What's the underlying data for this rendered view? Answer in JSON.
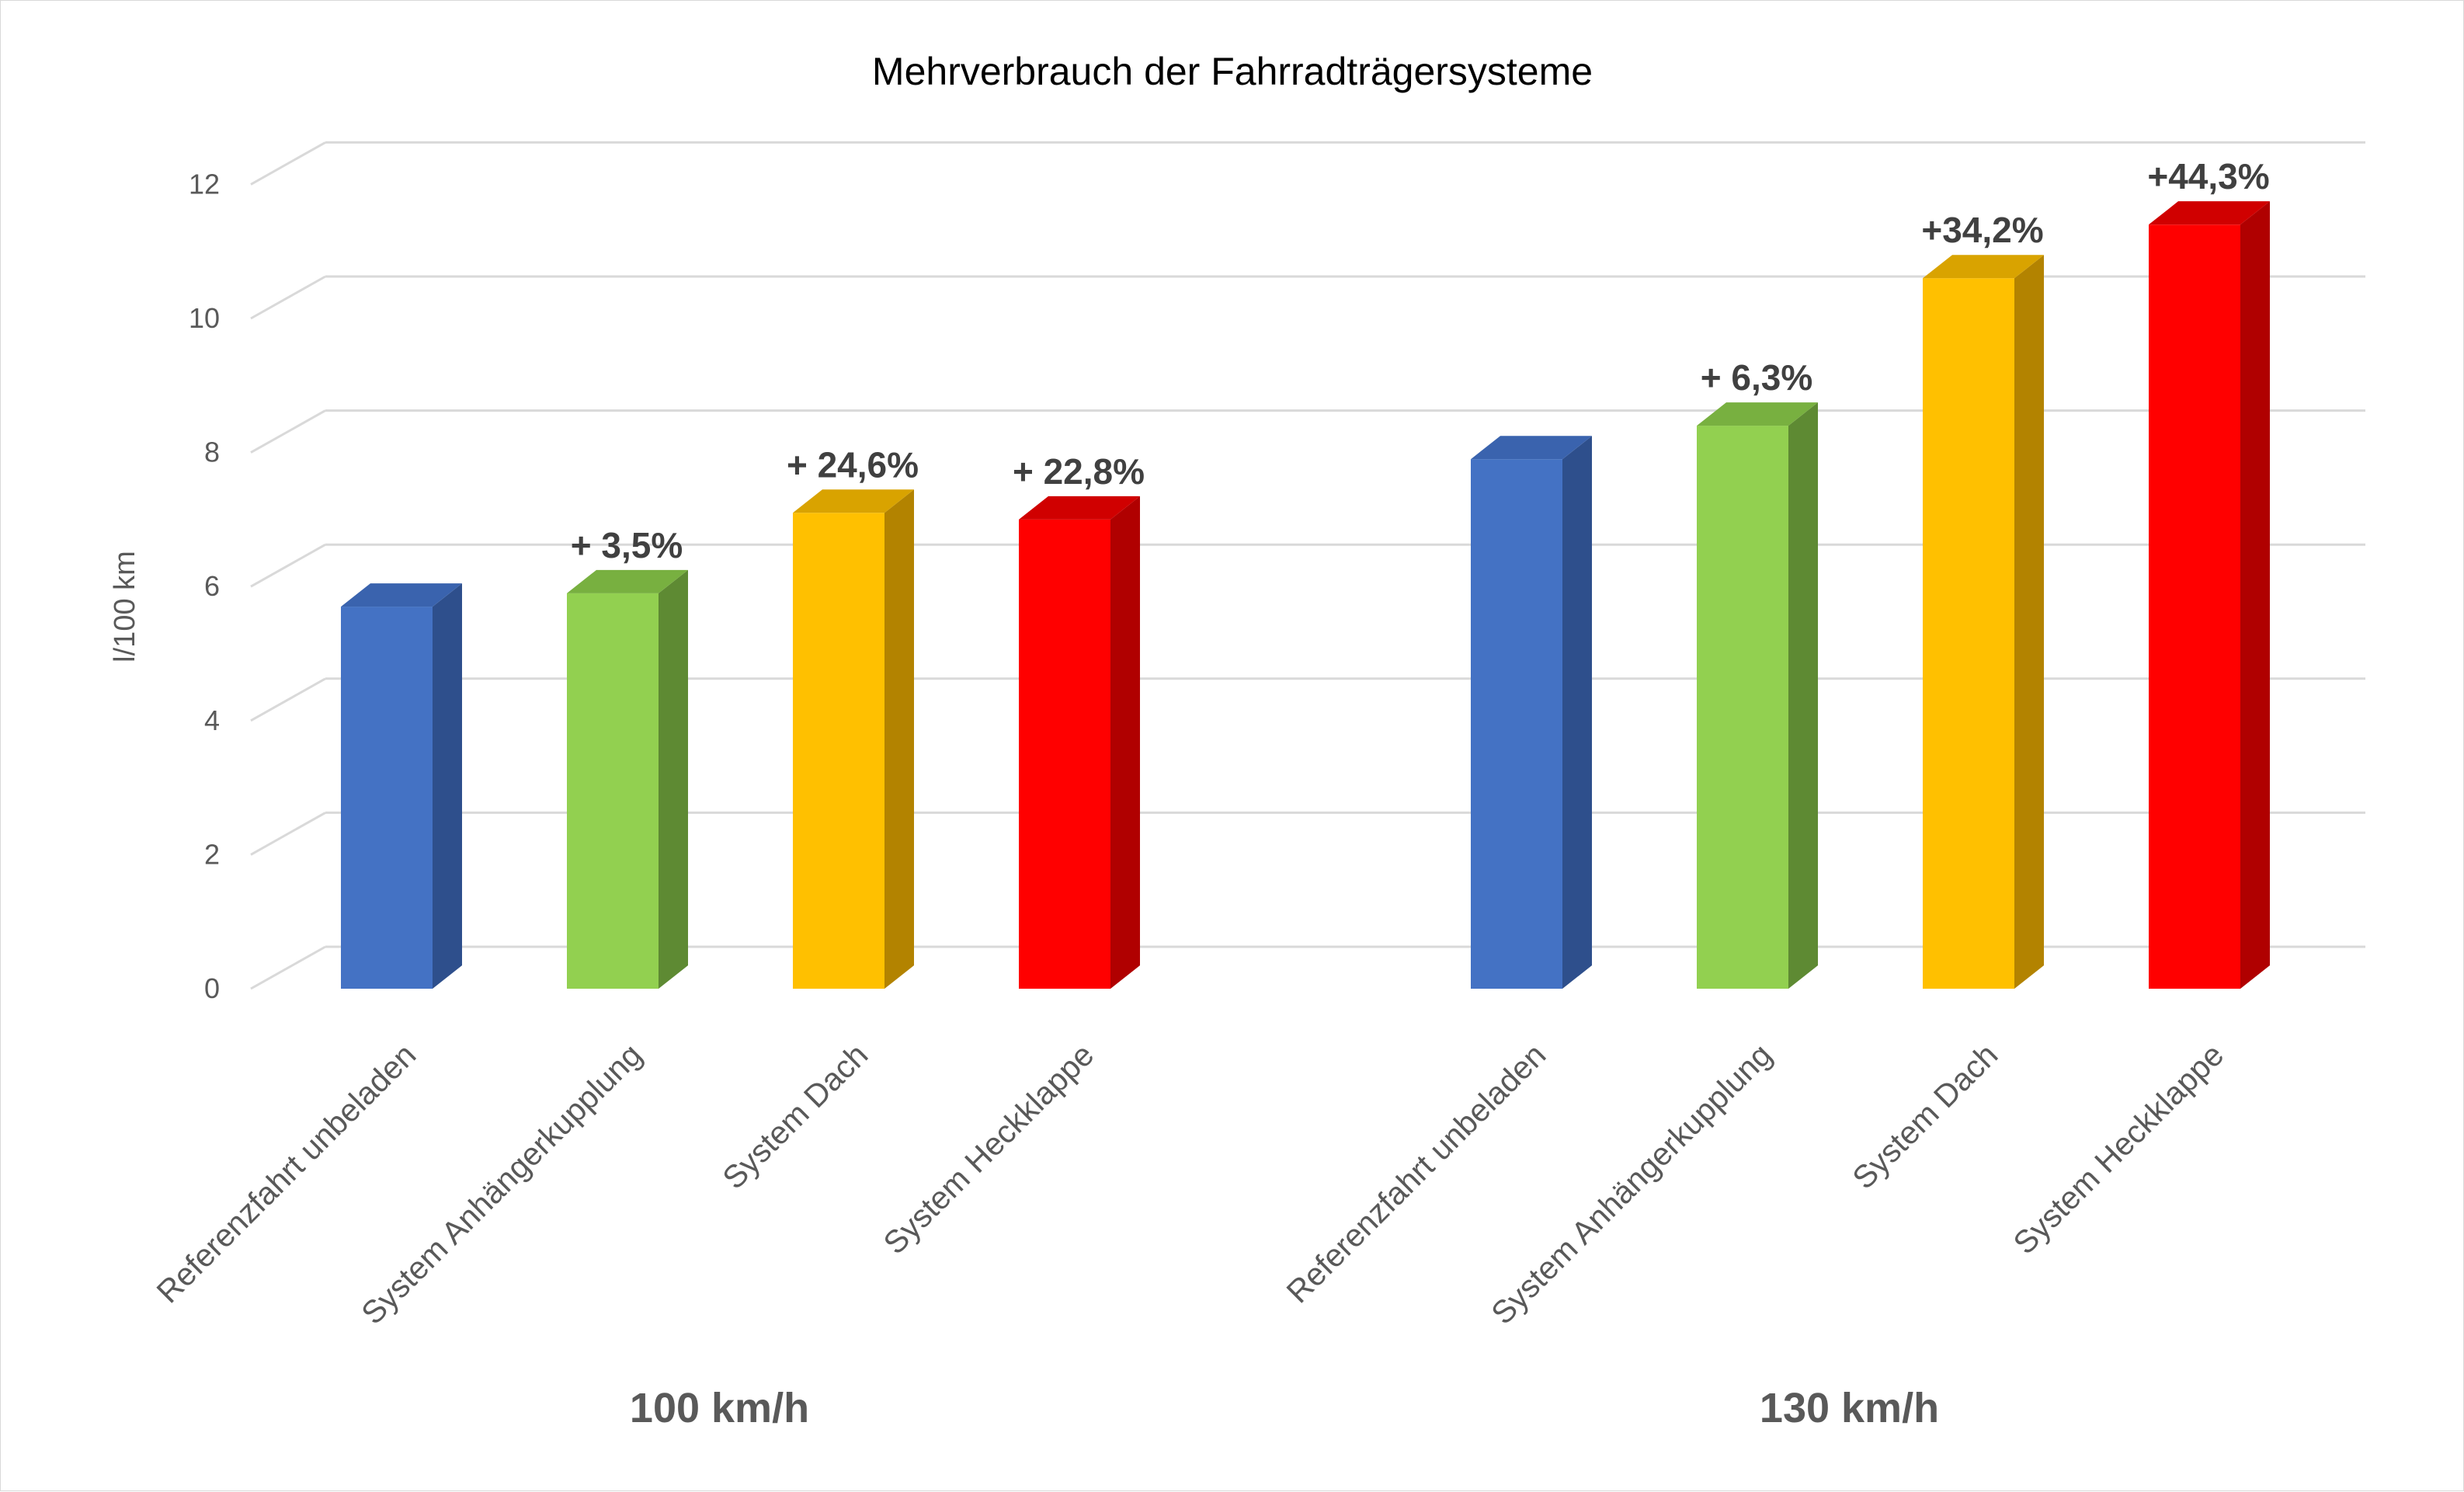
{
  "chart_data": {
    "type": "bar",
    "title": "Mehrverbrauch der Fahrradträgersysteme",
    "ylabel": "l/100 km",
    "xlabel": "",
    "ylim": [
      0,
      12
    ],
    "yticks": [
      "0",
      "2",
      "4",
      "6",
      "8",
      "10",
      "12"
    ],
    "grid": true,
    "groups": [
      {
        "label": "100 km/h",
        "bars": [
          {
            "category": "Referenzfahrt unbeladen",
            "value": 5.7,
            "annotation": "",
            "color": "#4472C4",
            "side": "#2E4F8C",
            "top": "#3A63AE"
          },
          {
            "category": "System Anhängerkupplung",
            "value": 5.9,
            "annotation": "+ 3,5%",
            "color": "#92D050",
            "side": "#5E8A33",
            "top": "#78B040"
          },
          {
            "category": "System Dach",
            "value": 7.1,
            "annotation": "+ 24,6%",
            "color": "#FFC000",
            "side": "#B38300",
            "top": "#D9A300"
          },
          {
            "category": "System Heckklappe",
            "value": 7.0,
            "annotation": "+ 22,8%",
            "color": "#FF0000",
            "side": "#B00000",
            "top": "#D00000"
          }
        ]
      },
      {
        "label": "130 km/h",
        "bars": [
          {
            "category": "Referenzfahrt unbeladen",
            "value": 7.9,
            "annotation": "",
            "color": "#4472C4",
            "side": "#2E4F8C",
            "top": "#3A63AE"
          },
          {
            "category": "System Anhängerkupplung",
            "value": 8.4,
            "annotation": "+ 6,3%",
            "color": "#92D050",
            "side": "#5E8A33",
            "top": "#78B040"
          },
          {
            "category": "System Dach",
            "value": 10.6,
            "annotation": "+34,2%",
            "color": "#FFC000",
            "side": "#B38300",
            "top": "#D9A300"
          },
          {
            "category": "System Heckklappe",
            "value": 11.4,
            "annotation": "+44,3%",
            "color": "#FF0000",
            "side": "#B00000",
            "top": "#D00000"
          }
        ]
      }
    ]
  }
}
